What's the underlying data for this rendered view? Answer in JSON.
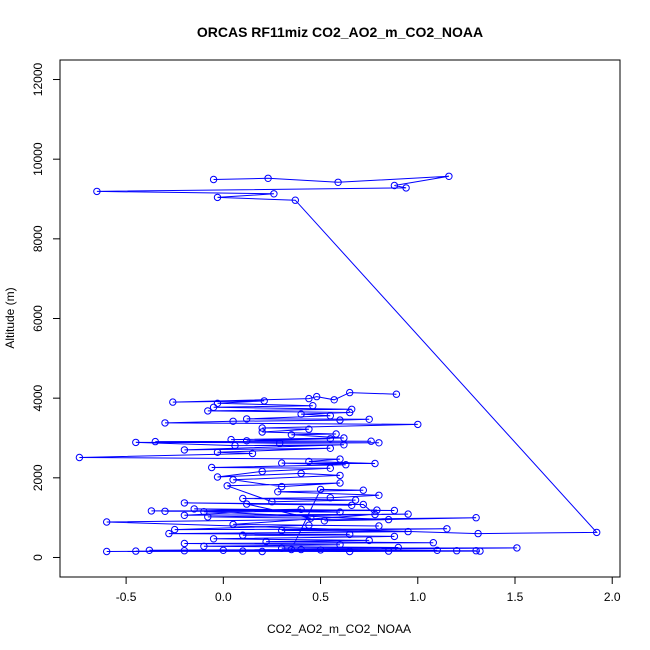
{
  "chart_data": {
    "type": "line",
    "title": "ORCAS RF11miz CO2_AO2_m_CO2_NOAA",
    "xlabel": "CO2_AO2_m_CO2_NOAA",
    "ylabel": "Altitude (m)",
    "xlim": [
      -0.84,
      2.04
    ],
    "ylim": [
      -490,
      12490
    ],
    "xticks": [
      -0.5,
      0.0,
      0.5,
      1.0,
      1.5,
      2.0
    ],
    "xtick_labels": [
      "-0.5",
      "0.0",
      "0.5",
      "1.0",
      "1.5",
      "2.0"
    ],
    "yticks": [
      0,
      2000,
      4000,
      6000,
      8000,
      10000,
      12000
    ],
    "ytick_labels": [
      "0",
      "2000",
      "4000",
      "6000",
      "8000",
      "10000",
      "12000"
    ],
    "color": "#0000ff",
    "series": [
      {
        "name": "CO2_AO2_m_CO2_NOAA",
        "points": [
          [
            -0.05,
            9490
          ],
          [
            0.23,
            9520
          ],
          [
            0.59,
            9420
          ],
          [
            1.16,
            9570
          ],
          [
            0.88,
            9340
          ],
          [
            0.94,
            9280
          ],
          [
            -0.65,
            9190
          ],
          [
            0.26,
            9130
          ],
          [
            -0.03,
            9040
          ],
          [
            0.37,
            8970
          ],
          [
            1.92,
            630
          ],
          [
            1.31,
            600
          ],
          [
            -0.6,
            890
          ],
          [
            1.3,
            1000
          ],
          [
            0.52,
            920
          ],
          [
            0.85,
            950
          ],
          [
            -0.1,
            1150
          ],
          [
            0.79,
            1190
          ],
          [
            -0.37,
            1170
          ],
          [
            0.6,
            1140
          ],
          [
            -0.15,
            1220
          ],
          [
            0.88,
            1180
          ],
          [
            -0.3,
            1160
          ],
          [
            0.4,
            1210
          ],
          [
            -0.2,
            1060
          ],
          [
            0.95,
            1090
          ],
          [
            -0.08,
            1020
          ],
          [
            0.45,
            990
          ],
          [
            0.12,
            1340
          ],
          [
            0.66,
            1310
          ],
          [
            -0.2,
            1370
          ],
          [
            0.72,
            1330
          ],
          [
            0.78,
            1080
          ],
          [
            0.05,
            830
          ],
          [
            0.8,
            790
          ],
          [
            0.44,
            810
          ],
          [
            -0.25,
            700
          ],
          [
            1.15,
            720
          ],
          [
            0.3,
            680
          ],
          [
            0.95,
            650
          ],
          [
            -0.28,
            600
          ],
          [
            0.65,
            580
          ],
          [
            0.1,
            560
          ],
          [
            0.88,
            530
          ],
          [
            -0.05,
            470
          ],
          [
            0.75,
            430
          ],
          [
            0.22,
            400
          ],
          [
            1.08,
            370
          ],
          [
            -0.2,
            350
          ],
          [
            0.6,
            320
          ],
          [
            -0.1,
            280
          ],
          [
            0.9,
            250
          ],
          [
            0.3,
            230
          ],
          [
            1.51,
            240
          ],
          [
            0.4,
            200
          ],
          [
            -0.38,
            180
          ],
          [
            1.3,
            170
          ],
          [
            0.1,
            160
          ],
          [
            -0.6,
            150
          ],
          [
            1.1,
            180
          ],
          [
            0.5,
            190
          ],
          [
            -0.2,
            170
          ],
          [
            0.85,
            160
          ],
          [
            0.2,
            150
          ],
          [
            1.2,
            170
          ],
          [
            -0.45,
            160
          ],
          [
            0.65,
            150
          ],
          [
            1.32,
            160
          ],
          [
            0.0,
            180
          ],
          [
            0.35,
            200
          ],
          [
            0.5,
            1710
          ],
          [
            0.72,
            1690
          ],
          [
            0.28,
            1650
          ],
          [
            0.8,
            1560
          ],
          [
            0.55,
            1500
          ],
          [
            0.1,
            1480
          ],
          [
            0.68,
            1440
          ],
          [
            0.25,
            1400
          ],
          [
            0.02,
            1800
          ],
          [
            0.6,
            1870
          ],
          [
            0.3,
            1780
          ],
          [
            0.05,
            1950
          ],
          [
            0.6,
            2060
          ],
          [
            0.4,
            2110
          ],
          [
            -0.03,
            2020
          ],
          [
            0.2,
            2160
          ],
          [
            0.55,
            2240
          ],
          [
            -0.06,
            2260
          ],
          [
            0.63,
            2330
          ],
          [
            0.3,
            2370
          ],
          [
            0.78,
            2360
          ],
          [
            0.44,
            2410
          ],
          [
            0.6,
            2470
          ],
          [
            -0.74,
            2510
          ],
          [
            0.15,
            2610
          ],
          [
            -0.03,
            2640
          ],
          [
            0.55,
            2740
          ],
          [
            -0.2,
            2700
          ],
          [
            0.62,
            2830
          ],
          [
            0.06,
            2810
          ],
          [
            -0.45,
            2890
          ],
          [
            0.8,
            2880
          ],
          [
            0.29,
            2870
          ],
          [
            -0.35,
            2910
          ],
          [
            0.76,
            2920
          ],
          [
            0.12,
            2930
          ],
          [
            0.55,
            2980
          ],
          [
            0.04,
            2960
          ],
          [
            0.62,
            3000
          ],
          [
            0.35,
            3080
          ],
          [
            0.58,
            3100
          ],
          [
            0.2,
            3150
          ],
          [
            0.44,
            3220
          ],
          [
            0.2,
            3250
          ],
          [
            1.0,
            3340
          ],
          [
            -0.3,
            3380
          ],
          [
            0.05,
            3420
          ],
          [
            0.6,
            3450
          ],
          [
            0.75,
            3470
          ],
          [
            0.12,
            3480
          ],
          [
            0.55,
            3560
          ],
          [
            0.4,
            3600
          ],
          [
            0.65,
            3640
          ],
          [
            -0.08,
            3680
          ],
          [
            0.66,
            3720
          ],
          [
            -0.05,
            3770
          ],
          [
            0.46,
            3810
          ],
          [
            -0.03,
            3870
          ],
          [
            0.21,
            3930
          ],
          [
            -0.26,
            3900
          ],
          [
            0.44,
            3990
          ],
          [
            0.48,
            4040
          ],
          [
            0.57,
            3960
          ],
          [
            0.65,
            4140
          ],
          [
            0.89,
            4100
          ]
        ]
      }
    ]
  }
}
